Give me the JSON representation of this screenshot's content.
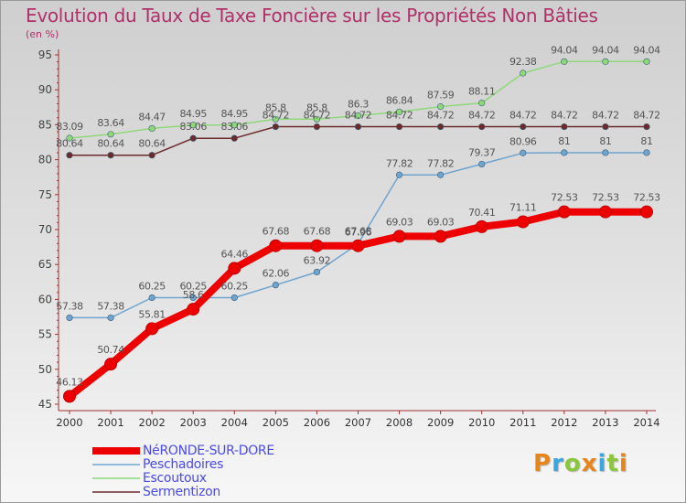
{
  "title": "Evolution du Taux de Taxe Foncière sur les Propriétés Non Bâties",
  "subtitle": "(en %)",
  "logo": {
    "letters": [
      "P",
      "r",
      "o",
      "x",
      "i",
      "t",
      "i"
    ],
    "colors": [
      "#e8851a",
      "#3aa8e0",
      "#8cc63f",
      "#e8851a",
      "#3aa8e0",
      "#8cc63f",
      "#e8851a"
    ]
  },
  "chart_data": {
    "type": "line",
    "title": "Evolution du Taux de Taxe Foncière sur les Propriétés Non Bâties",
    "ylabel": "(en %)",
    "x": [
      "2000",
      "2001",
      "2002",
      "2003",
      "2004",
      "2005",
      "2006",
      "2007",
      "2008",
      "2009",
      "2010",
      "2011",
      "2012",
      "2013",
      "2014"
    ],
    "yticks": [
      "45",
      "50",
      "55",
      "60",
      "65",
      "70",
      "75",
      "80",
      "85",
      "90",
      "95"
    ],
    "ylim": [
      45,
      95
    ],
    "grid": false,
    "legend": "bottom-left",
    "series": [
      {
        "name": "NéRONDE-SUR-DORE",
        "color": "#ee0000",
        "values": [
          46.13,
          50.74,
          55.81,
          58.6,
          64.46,
          67.68,
          67.68,
          67.68,
          69.03,
          69.03,
          70.41,
          71.11,
          72.53,
          72.53,
          72.53
        ],
        "labels": [
          "46.13",
          "50.74",
          "55.81",
          "58.6",
          "64.46",
          "67.68",
          "67.68",
          "67.68",
          "69.03",
          "69.03",
          "70.41",
          "71.11",
          "72.53",
          "72.53",
          "72.53"
        ]
      },
      {
        "name": "Peschadoires",
        "color": "#6fa4cf",
        "values": [
          57.38,
          57.38,
          60.25,
          60.25,
          60.25,
          62.06,
          63.92,
          67.96,
          77.82,
          77.82,
          79.37,
          80.96,
          81,
          81,
          81
        ],
        "labels": [
          "57.38",
          "57.38",
          "60.25",
          "60.25",
          "60.25",
          "62.06",
          "63.92",
          "67.96",
          "77.82",
          "77.82",
          "79.37",
          "80.96",
          "81",
          "81",
          "81"
        ]
      },
      {
        "name": "Escoutoux",
        "color": "#8fd87a",
        "values": [
          83.09,
          83.64,
          84.47,
          84.95,
          84.95,
          85.8,
          85.8,
          86.3,
          86.84,
          87.59,
          88.11,
          92.38,
          94.04,
          94.04,
          94.04
        ],
        "labels": [
          "83.09",
          "83.64",
          "84.47",
          "84.95",
          "84.95",
          "85.8",
          "85.8",
          "86.3",
          "86.84",
          "87.59",
          "88.11",
          "92.38",
          "94.04",
          "94.04",
          "94.04"
        ]
      },
      {
        "name": "Sermentizon",
        "color": "#6b2b2b",
        "values": [
          80.64,
          80.64,
          80.64,
          83.06,
          83.06,
          84.72,
          84.72,
          84.72,
          84.72,
          84.72,
          84.72,
          84.72,
          84.72,
          84.72,
          84.72
        ],
        "labels": [
          "80.64",
          "80.64",
          "80.64",
          "83.06",
          "83.06",
          "84.72",
          "84.72",
          "84.72",
          "84.72",
          "84.72",
          "84.72",
          "84.72",
          "84.72",
          "84.72",
          "84.72"
        ]
      }
    ]
  }
}
